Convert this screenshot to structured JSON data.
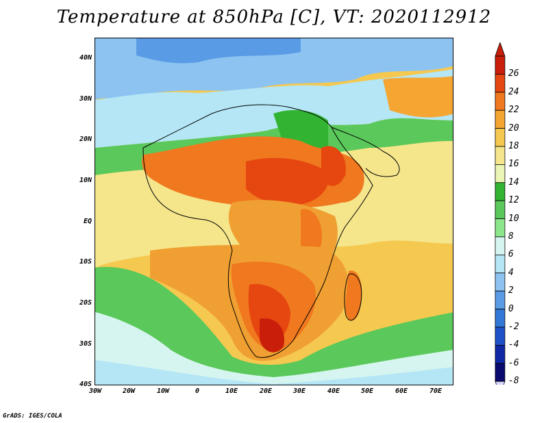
{
  "title": "Temperature at 850hPa [C], VT: 2020112912",
  "credit": "GrADS: IGES/COLA",
  "axes": {
    "y_ticks": [
      "40N",
      "30N",
      "20N",
      "10N",
      "EQ",
      "10S",
      "20S",
      "30S",
      "40S"
    ],
    "x_ticks": [
      "30W",
      "20W",
      "10W",
      "0",
      "10E",
      "20E",
      "30E",
      "40E",
      "50E",
      "60E",
      "70E"
    ]
  },
  "colorbar": {
    "labels": [
      "26",
      "24",
      "22",
      "20",
      "18",
      "16",
      "14",
      "12",
      "10",
      "8",
      "6",
      "4",
      "2",
      "0",
      "-2",
      "-4",
      "-6",
      "-8"
    ],
    "colors": [
      "#c81e0a",
      "#e6460f",
      "#f0781e",
      "#f5a532",
      "#f5c850",
      "#f5e68c",
      "#ebf5b4",
      "#32b432",
      "#5ac85a",
      "#8ce68c",
      "#d7f5f0",
      "#b4e6f5",
      "#8cc3f0",
      "#5a9be6",
      "#3278d7",
      "#1e50c8",
      "#0f28a5",
      "#0a0a6e"
    ],
    "over_color": "#c81e0a",
    "under_color": "#d7d7ff"
  },
  "map_layers": [
    {
      "name": "southern-ocean-cold",
      "color": "#b4dcf5"
    },
    {
      "name": "mid-lat-green",
      "color": "#5ac85a"
    },
    {
      "name": "subtropic-yellow",
      "color": "#f5e68c"
    },
    {
      "name": "ocean-orange",
      "color": "#f5c850"
    },
    {
      "name": "land-orange",
      "color": "#f0a032"
    },
    {
      "name": "hot-red",
      "color": "#e6460f"
    }
  ]
}
